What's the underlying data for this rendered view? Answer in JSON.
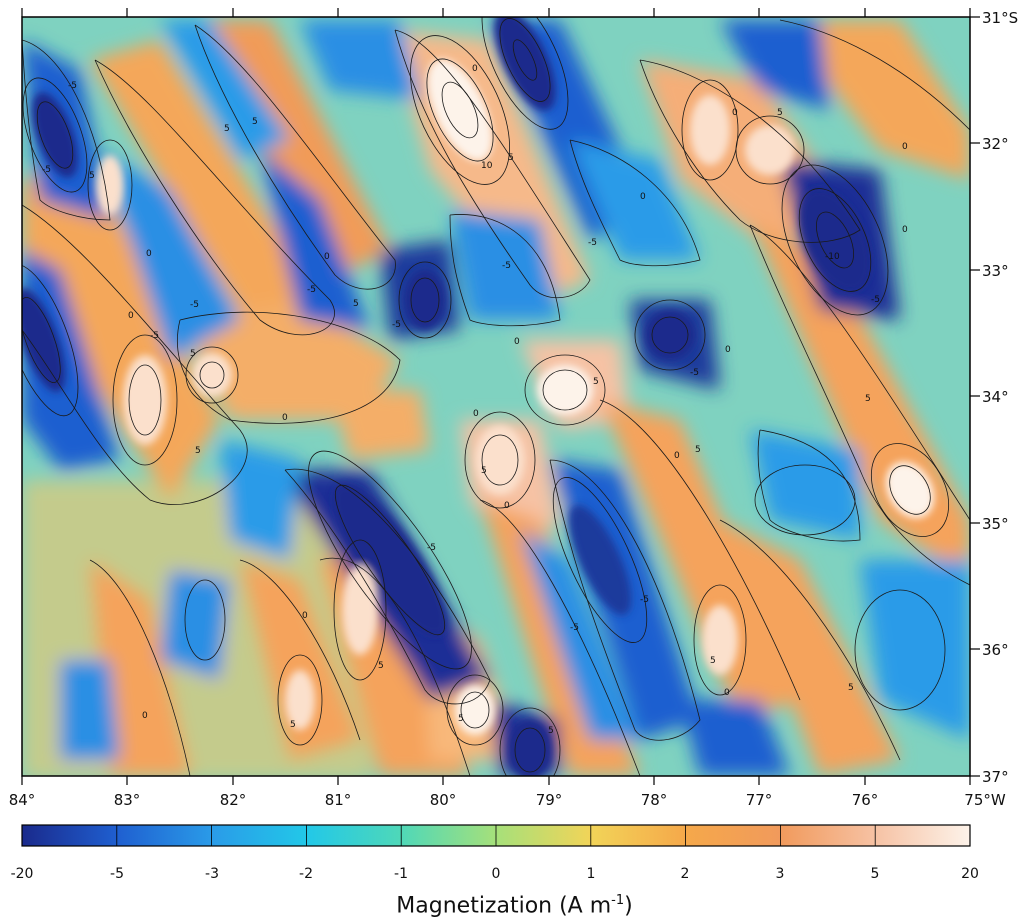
{
  "map": {
    "x_ticks": [
      "84°",
      "83°",
      "82°",
      "81°",
      "80°",
      "79°",
      "78°",
      "77°",
      "76°",
      "75°W"
    ],
    "y_ticks": [
      "31°S",
      "32°",
      "33°",
      "34°",
      "35°",
      "36°",
      "37°"
    ],
    "lon_range": [
      -84,
      -75
    ],
    "lat_range": [
      -37,
      -31
    ],
    "contour_labels": [
      "-5",
      "-5",
      "-5",
      "-5",
      "-5",
      "-5",
      "-5",
      "-5",
      "-5",
      "-5",
      "-5",
      "-5",
      "-5",
      "-10",
      "0",
      "0",
      "0",
      "0",
      "0",
      "0",
      "0",
      "0",
      "0",
      "0",
      "0",
      "0",
      "0",
      "0",
      "0",
      "0",
      "0",
      "5",
      "5",
      "5",
      "5",
      "5",
      "5",
      "5",
      "5",
      "5",
      "5",
      "5",
      "5",
      "5",
      "5",
      "5",
      "5",
      "5",
      "5",
      "10"
    ]
  },
  "colorbar": {
    "title_text": "Magnetization (A m",
    "title_sup": "-1",
    "title_close": ")",
    "labels": [
      "-20",
      "-5",
      "-3",
      "-2",
      "-1",
      "0",
      "1",
      "2",
      "3",
      "5",
      "20"
    ],
    "colors": [
      "#1a2a8c",
      "#1f5fd0",
      "#2a9be8",
      "#22c8e8",
      "#4fd8b8",
      "#a6e07a",
      "#f2d458",
      "#f5a84a",
      "#f19a5c",
      "#f6c2a4",
      "#fdf3ea"
    ]
  }
}
